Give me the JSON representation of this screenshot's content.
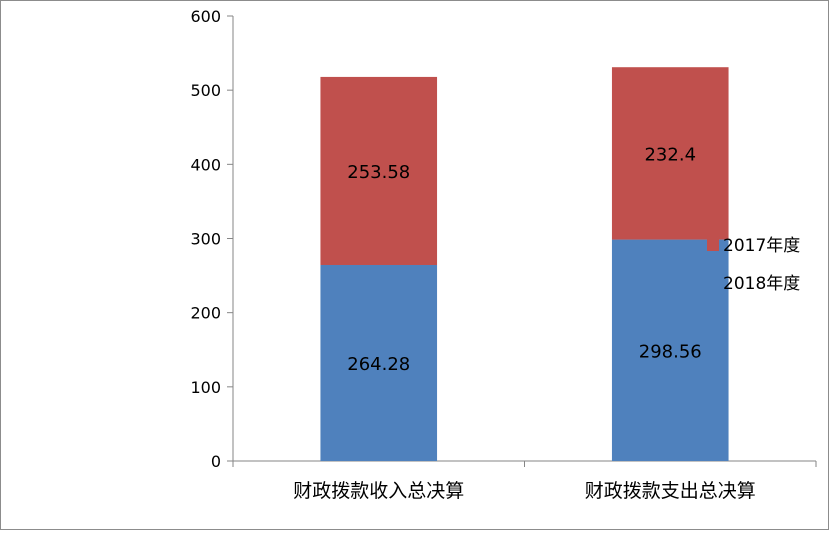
{
  "chart_data": {
    "type": "bar",
    "stacked": true,
    "title": "",
    "xlabel": "",
    "ylabel": "",
    "categories": [
      "财政拨款收入总决算",
      "财政拨款支出总决算"
    ],
    "series": [
      {
        "name": "2018年度",
        "values": [
          264.28,
          298.56
        ],
        "labels": [
          "264.28",
          "298.56"
        ],
        "color": "#4f81bd"
      },
      {
        "name": "2017年度",
        "values": [
          253.58,
          232.4
        ],
        "labels": [
          "253.58",
          "232.4"
        ],
        "color": "#c0504d"
      }
    ],
    "ylim": [
      0,
      600
    ],
    "yticks": [
      0,
      100,
      200,
      300,
      400,
      500,
      600
    ],
    "ytick_labels": [
      "0",
      "100",
      "200",
      "300",
      "400",
      "500",
      "600"
    ],
    "grid": false,
    "legend_position": "right"
  }
}
